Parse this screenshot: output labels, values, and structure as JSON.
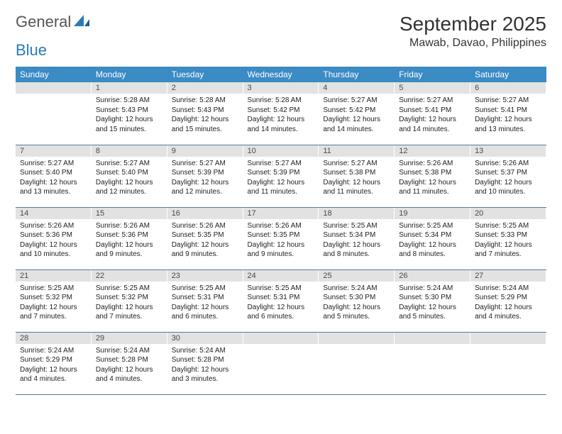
{
  "logo": {
    "part1": "General",
    "part2": "Blue"
  },
  "title": "September 2025",
  "location": "Mawab, Davao, Philippines",
  "colors": {
    "header_bg": "#3b8bc5",
    "header_text": "#ffffff",
    "daynum_bg": "#e2e2e2",
    "daynum_text": "#4a4a4a",
    "border": "#5a7a95",
    "logo_gray": "#555555",
    "logo_blue": "#2a7ab8"
  },
  "weekdays": [
    "Sunday",
    "Monday",
    "Tuesday",
    "Wednesday",
    "Thursday",
    "Friday",
    "Saturday"
  ],
  "weeks": [
    [
      {
        "n": "",
        "sr": "",
        "ss": "",
        "dl": ""
      },
      {
        "n": "1",
        "sr": "Sunrise: 5:28 AM",
        "ss": "Sunset: 5:43 PM",
        "dl": "Daylight: 12 hours and 15 minutes."
      },
      {
        "n": "2",
        "sr": "Sunrise: 5:28 AM",
        "ss": "Sunset: 5:43 PM",
        "dl": "Daylight: 12 hours and 15 minutes."
      },
      {
        "n": "3",
        "sr": "Sunrise: 5:28 AM",
        "ss": "Sunset: 5:42 PM",
        "dl": "Daylight: 12 hours and 14 minutes."
      },
      {
        "n": "4",
        "sr": "Sunrise: 5:27 AM",
        "ss": "Sunset: 5:42 PM",
        "dl": "Daylight: 12 hours and 14 minutes."
      },
      {
        "n": "5",
        "sr": "Sunrise: 5:27 AM",
        "ss": "Sunset: 5:41 PM",
        "dl": "Daylight: 12 hours and 14 minutes."
      },
      {
        "n": "6",
        "sr": "Sunrise: 5:27 AM",
        "ss": "Sunset: 5:41 PM",
        "dl": "Daylight: 12 hours and 13 minutes."
      }
    ],
    [
      {
        "n": "7",
        "sr": "Sunrise: 5:27 AM",
        "ss": "Sunset: 5:40 PM",
        "dl": "Daylight: 12 hours and 13 minutes."
      },
      {
        "n": "8",
        "sr": "Sunrise: 5:27 AM",
        "ss": "Sunset: 5:40 PM",
        "dl": "Daylight: 12 hours and 12 minutes."
      },
      {
        "n": "9",
        "sr": "Sunrise: 5:27 AM",
        "ss": "Sunset: 5:39 PM",
        "dl": "Daylight: 12 hours and 12 minutes."
      },
      {
        "n": "10",
        "sr": "Sunrise: 5:27 AM",
        "ss": "Sunset: 5:39 PM",
        "dl": "Daylight: 12 hours and 11 minutes."
      },
      {
        "n": "11",
        "sr": "Sunrise: 5:27 AM",
        "ss": "Sunset: 5:38 PM",
        "dl": "Daylight: 12 hours and 11 minutes."
      },
      {
        "n": "12",
        "sr": "Sunrise: 5:26 AM",
        "ss": "Sunset: 5:38 PM",
        "dl": "Daylight: 12 hours and 11 minutes."
      },
      {
        "n": "13",
        "sr": "Sunrise: 5:26 AM",
        "ss": "Sunset: 5:37 PM",
        "dl": "Daylight: 12 hours and 10 minutes."
      }
    ],
    [
      {
        "n": "14",
        "sr": "Sunrise: 5:26 AM",
        "ss": "Sunset: 5:36 PM",
        "dl": "Daylight: 12 hours and 10 minutes."
      },
      {
        "n": "15",
        "sr": "Sunrise: 5:26 AM",
        "ss": "Sunset: 5:36 PM",
        "dl": "Daylight: 12 hours and 9 minutes."
      },
      {
        "n": "16",
        "sr": "Sunrise: 5:26 AM",
        "ss": "Sunset: 5:35 PM",
        "dl": "Daylight: 12 hours and 9 minutes."
      },
      {
        "n": "17",
        "sr": "Sunrise: 5:26 AM",
        "ss": "Sunset: 5:35 PM",
        "dl": "Daylight: 12 hours and 9 minutes."
      },
      {
        "n": "18",
        "sr": "Sunrise: 5:25 AM",
        "ss": "Sunset: 5:34 PM",
        "dl": "Daylight: 12 hours and 8 minutes."
      },
      {
        "n": "19",
        "sr": "Sunrise: 5:25 AM",
        "ss": "Sunset: 5:34 PM",
        "dl": "Daylight: 12 hours and 8 minutes."
      },
      {
        "n": "20",
        "sr": "Sunrise: 5:25 AM",
        "ss": "Sunset: 5:33 PM",
        "dl": "Daylight: 12 hours and 7 minutes."
      }
    ],
    [
      {
        "n": "21",
        "sr": "Sunrise: 5:25 AM",
        "ss": "Sunset: 5:32 PM",
        "dl": "Daylight: 12 hours and 7 minutes."
      },
      {
        "n": "22",
        "sr": "Sunrise: 5:25 AM",
        "ss": "Sunset: 5:32 PM",
        "dl": "Daylight: 12 hours and 7 minutes."
      },
      {
        "n": "23",
        "sr": "Sunrise: 5:25 AM",
        "ss": "Sunset: 5:31 PM",
        "dl": "Daylight: 12 hours and 6 minutes."
      },
      {
        "n": "24",
        "sr": "Sunrise: 5:25 AM",
        "ss": "Sunset: 5:31 PM",
        "dl": "Daylight: 12 hours and 6 minutes."
      },
      {
        "n": "25",
        "sr": "Sunrise: 5:24 AM",
        "ss": "Sunset: 5:30 PM",
        "dl": "Daylight: 12 hours and 5 minutes."
      },
      {
        "n": "26",
        "sr": "Sunrise: 5:24 AM",
        "ss": "Sunset: 5:30 PM",
        "dl": "Daylight: 12 hours and 5 minutes."
      },
      {
        "n": "27",
        "sr": "Sunrise: 5:24 AM",
        "ss": "Sunset: 5:29 PM",
        "dl": "Daylight: 12 hours and 4 minutes."
      }
    ],
    [
      {
        "n": "28",
        "sr": "Sunrise: 5:24 AM",
        "ss": "Sunset: 5:29 PM",
        "dl": "Daylight: 12 hours and 4 minutes."
      },
      {
        "n": "29",
        "sr": "Sunrise: 5:24 AM",
        "ss": "Sunset: 5:28 PM",
        "dl": "Daylight: 12 hours and 4 minutes."
      },
      {
        "n": "30",
        "sr": "Sunrise: 5:24 AM",
        "ss": "Sunset: 5:28 PM",
        "dl": "Daylight: 12 hours and 3 minutes."
      },
      {
        "n": "",
        "sr": "",
        "ss": "",
        "dl": ""
      },
      {
        "n": "",
        "sr": "",
        "ss": "",
        "dl": ""
      },
      {
        "n": "",
        "sr": "",
        "ss": "",
        "dl": ""
      },
      {
        "n": "",
        "sr": "",
        "ss": "",
        "dl": ""
      }
    ]
  ]
}
